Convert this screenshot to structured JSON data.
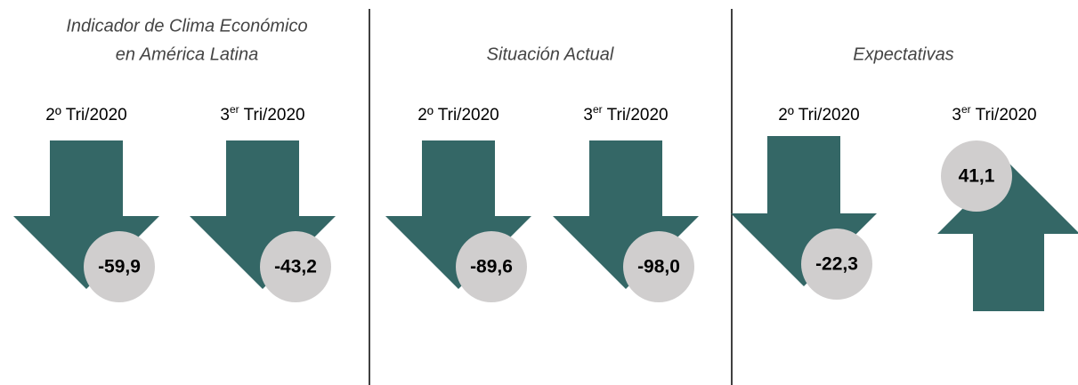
{
  "panels": [
    {
      "title": [
        "Indicador de Clima Económico",
        "en América Latina"
      ],
      "periods": [
        {
          "label": [
            "2º Tri/2020"
          ],
          "value": -59.9,
          "value_label": "-59,9"
        },
        {
          "label": [
            "3",
            "er",
            " Tri/2020"
          ],
          "value": -43.2,
          "value_label": "-43,2"
        }
      ]
    },
    {
      "title": [
        "Situación Actual"
      ],
      "periods": [
        {
          "label": [
            "2º Tri/2020"
          ],
          "value": -89.6,
          "value_label": "-89,6"
        },
        {
          "label": [
            "3",
            "er",
            " Tri/2020"
          ],
          "value": -98.0,
          "value_label": "-98,0"
        }
      ]
    },
    {
      "title": [
        "Expectativas"
      ],
      "periods": [
        {
          "label": [
            "2º Tri/2020"
          ],
          "value": -22.3,
          "value_label": "-22,3"
        },
        {
          "label": [
            "3",
            "er",
            " Tri/2020"
          ],
          "value": 41.1,
          "value_label": "41,1"
        }
      ]
    }
  ],
  "arrow_color": "#346766",
  "circle_color": "#d0cece"
}
